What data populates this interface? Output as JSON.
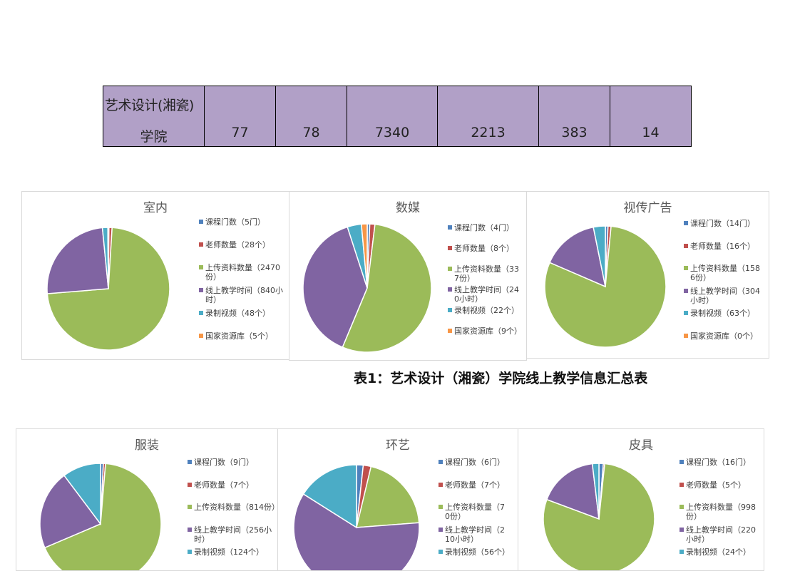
{
  "summary_row": {
    "name_line1": "艺术设计(湘瓷)",
    "name_line2": "学院",
    "values": [
      "77",
      "78",
      "7340",
      "2213",
      "383",
      "14"
    ]
  },
  "caption": "表1：艺术设计（湘瓷）学院线上教学信息汇总表",
  "colors": [
    "#4f81bd",
    "#c0504d",
    "#9bbb59",
    "#8064a2",
    "#4bacc6",
    "#f79646"
  ],
  "chart_data": [
    {
      "type": "pie",
      "title": "室内",
      "legend": [
        "课程门数（5门）",
        "老师数量（28个）",
        "上传资料数量（2470份）",
        "线上教学时间（840小时）",
        "录制视频（48个）",
        "国家资源库（5个）"
      ],
      "values": [
        5,
        28,
        2470,
        840,
        48,
        5
      ]
    },
    {
      "type": "pie",
      "title": "数媒",
      "legend": [
        "课程门数（4门）",
        "老师数量（8个）",
        "上传资料数量（337份）",
        "线上教学时间（240小时）",
        "录制视频（22个）",
        "国家资源库（9个）"
      ],
      "values": [
        4,
        8,
        337,
        240,
        22,
        9
      ]
    },
    {
      "type": "pie",
      "title": "视传广告",
      "legend": [
        "课程门数（14门）",
        "老师数量（16个）",
        "上传资料数量（1586份）",
        "线上教学时间（304小时）",
        "录制视频（63个）",
        "国家资源库（0个）"
      ],
      "values": [
        14,
        16,
        1586,
        304,
        63,
        0
      ]
    },
    {
      "type": "pie",
      "title": "服装",
      "legend": [
        "课程门数（9门）",
        "老师数量（7个）",
        "上传资料数量（814份）",
        "线上教学时间（256小时）",
        "录制视频（124个）"
      ],
      "values": [
        9,
        7,
        814,
        256,
        124
      ]
    },
    {
      "type": "pie",
      "title": "环艺",
      "legend": [
        "课程门数（6门）",
        "老师数量（7个）",
        "上传资料数量（70份）",
        "线上教学时间（210小时）",
        "录制视频（56个）"
      ],
      "values": [
        6,
        7,
        70,
        210,
        56
      ]
    },
    {
      "type": "pie",
      "title": "皮具",
      "legend": [
        "课程门数（16门）",
        "老师数量（5个）",
        "上传资料数量（998份）",
        "线上教学时间（220小时）",
        "录制视频（24个）"
      ],
      "values": [
        16,
        5,
        998,
        220,
        24
      ]
    }
  ]
}
